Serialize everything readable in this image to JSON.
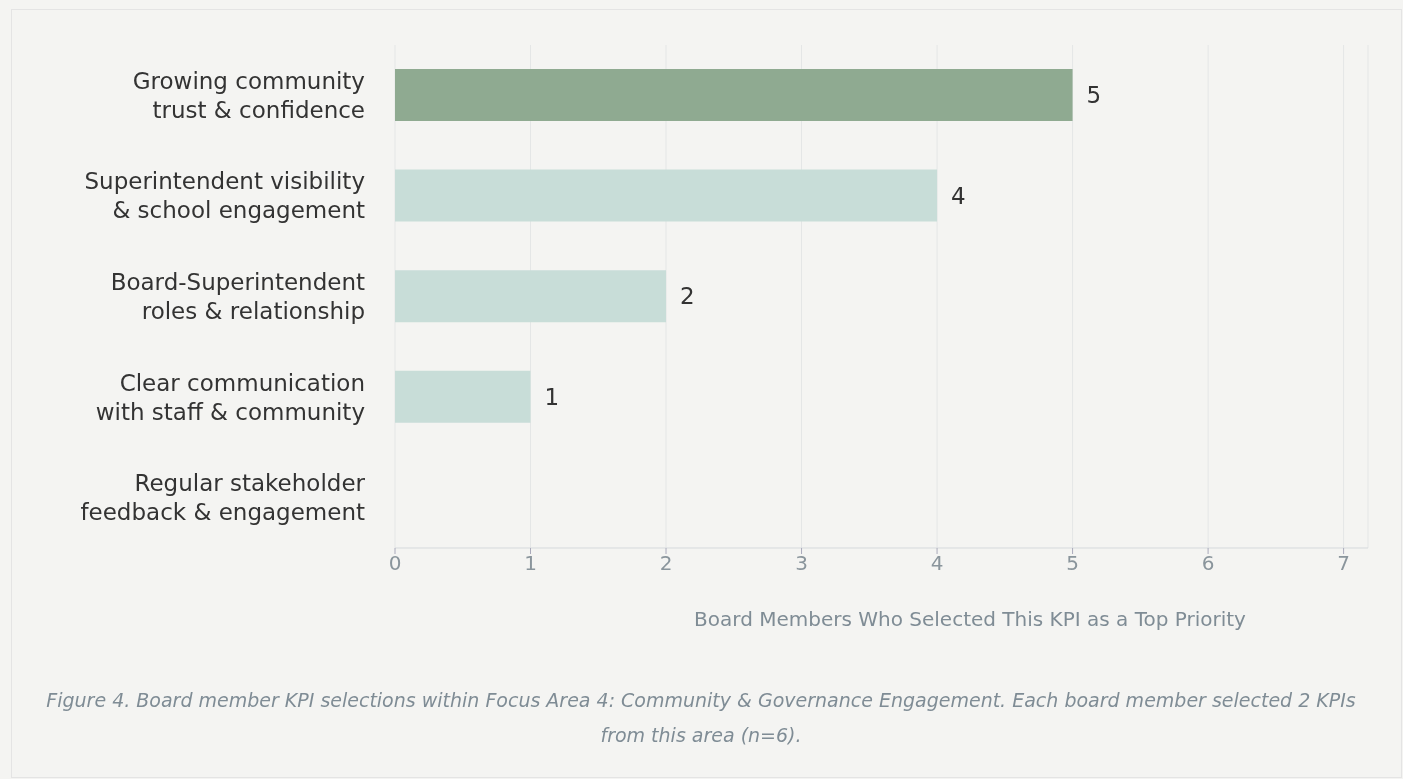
{
  "chart_data": {
    "type": "bar",
    "orientation": "horizontal",
    "categories": [
      "Growing community trust & confidence",
      "Superintendent visibility & school engagement",
      "Board-Superintendent roles & relationship",
      "Clear communication with staff & community",
      "Regular stakeholder feedback & engagement"
    ],
    "values": [
      5,
      4,
      2,
      1,
      0
    ],
    "colors": [
      "#8faa91",
      "#c8ddd8",
      "#c8ddd8",
      "#c8ddd8",
      "#c8ddd8"
    ],
    "value_labels": [
      "5",
      "4",
      "2",
      "1",
      null
    ],
    "xlim": [
      0,
      7.18
    ],
    "xticks": [
      0,
      1,
      2,
      3,
      4,
      5,
      6,
      7
    ],
    "xlabel": "Board Members Who Selected This KPI as a Top Priority",
    "grid": "x",
    "legend": false,
    "annotations": [
      "Figure 4. Board member KPI selections within Focus Area 4: Community & Governance Engagement. Each board member selected 2 KPIs from this area (n=6)."
    ]
  }
}
